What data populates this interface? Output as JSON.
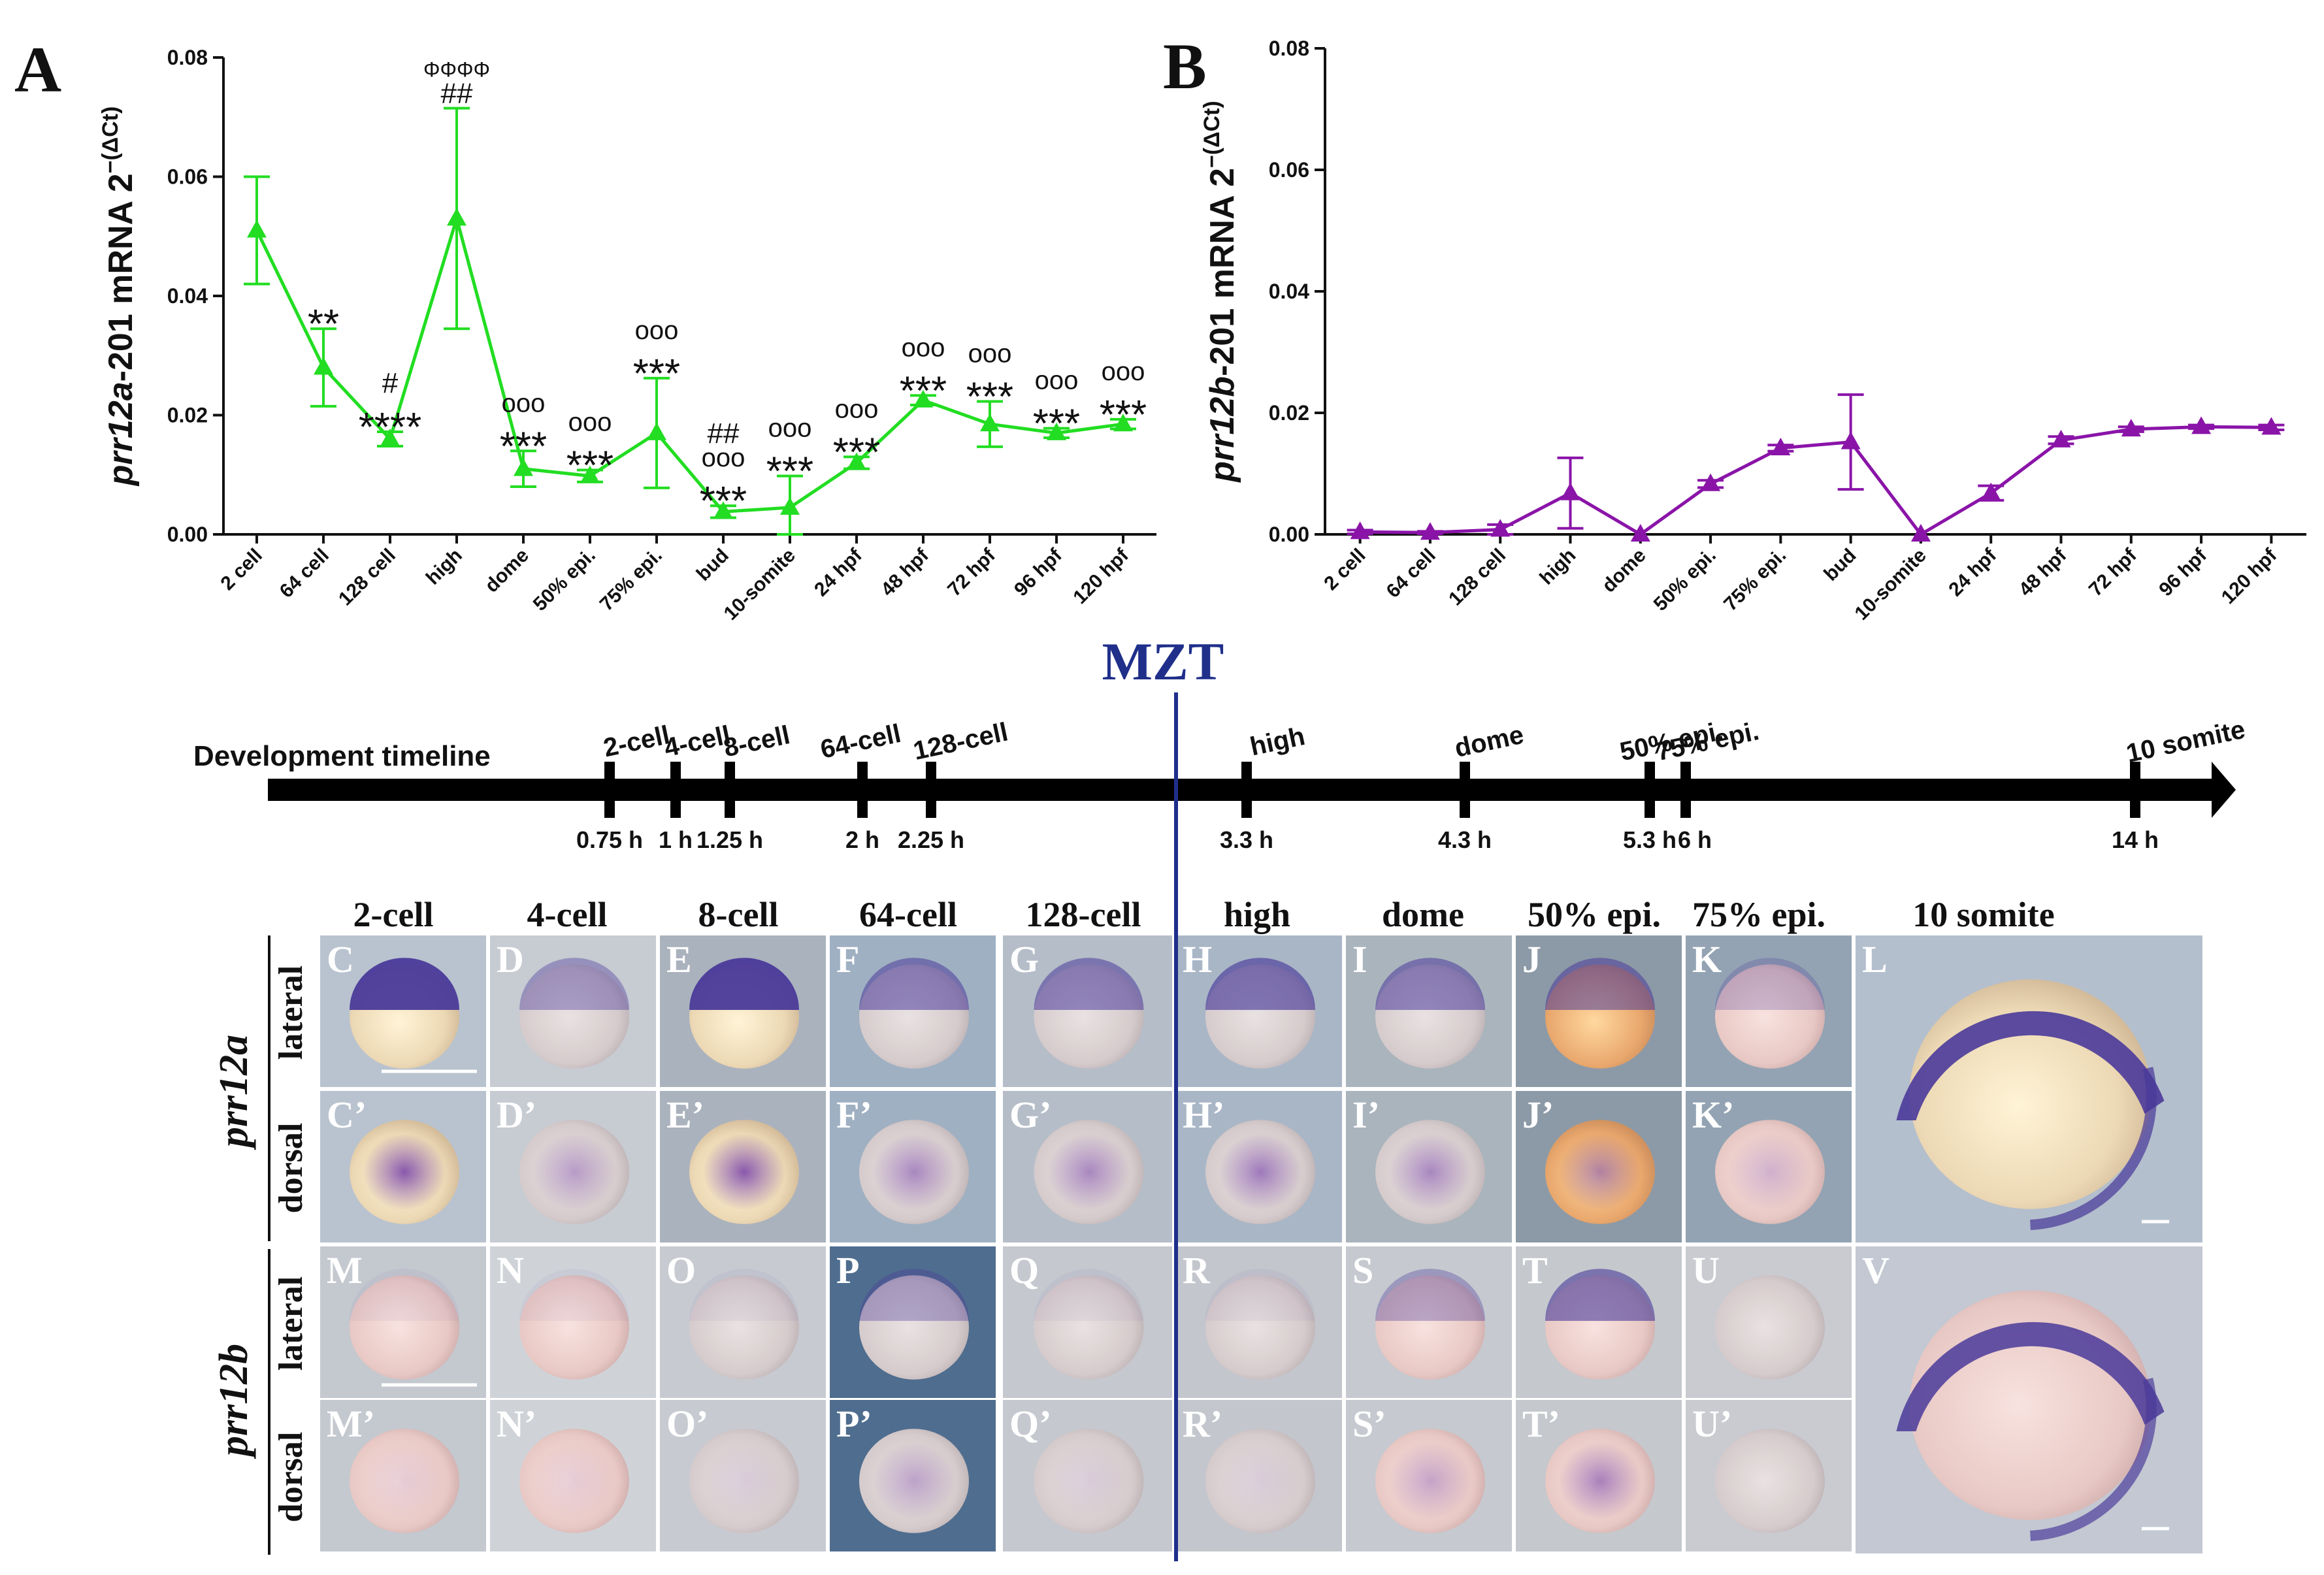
{
  "panel_labels": {
    "A": "A",
    "B": "B"
  },
  "chart_data": [
    {
      "type": "line",
      "panel": "A",
      "ylabel_gene": "prr12a",
      "ylabel_rest": "-201 mRNA 2",
      "ylabel_exp": "−(ΔCt)",
      "ylim": [
        0,
        0.08
      ],
      "yticks": [
        "0.00",
        "0.02",
        "0.04",
        "0.06",
        "0.08"
      ],
      "categories": [
        "2 cell",
        "64 cell",
        "128 cell",
        "high",
        "dome",
        "50% epi.",
        "75% epi.",
        "bud",
        "10-somite",
        "24 hpf",
        "48 hpf",
        "72 hpf",
        "96 hpf",
        "120 hpf"
      ],
      "values": [
        0.051,
        0.028,
        0.016,
        0.053,
        0.011,
        0.0098,
        0.017,
        0.0038,
        0.0045,
        0.012,
        0.0225,
        0.0185,
        0.017,
        0.0185
      ],
      "errors": [
        0.009,
        0.0065,
        0.0012,
        0.0185,
        0.003,
        0.001,
        0.0092,
        0.001,
        0.0053,
        0.001,
        0.0008,
        0.0038,
        0.0008,
        0.0008
      ],
      "color": "#22dd22",
      "annotations": [
        {
          "index": 1,
          "lines": [
            "**"
          ]
        },
        {
          "index": 2,
          "lines": [
            "#",
            "****"
          ]
        },
        {
          "index": 3,
          "lines": [
            "ΦΦΦΦ",
            "##"
          ]
        },
        {
          "index": 4,
          "lines": [
            "ooo",
            "***"
          ]
        },
        {
          "index": 5,
          "lines": [
            "ooo",
            "***"
          ]
        },
        {
          "index": 6,
          "lines": [
            "ooo",
            "***"
          ]
        },
        {
          "index": 7,
          "lines": [
            "##",
            "ooo",
            "***"
          ]
        },
        {
          "index": 8,
          "lines": [
            "ooo",
            "***"
          ]
        },
        {
          "index": 9,
          "lines": [
            "ooo",
            "***"
          ]
        },
        {
          "index": 10,
          "lines": [
            "ooo",
            "***"
          ]
        },
        {
          "index": 11,
          "lines": [
            "ooo",
            "***"
          ]
        },
        {
          "index": 12,
          "lines": [
            "ooo",
            "***"
          ]
        },
        {
          "index": 13,
          "lines": [
            "ooo",
            "***"
          ]
        }
      ]
    },
    {
      "type": "line",
      "panel": "B",
      "ylabel_gene": "prr12b",
      "ylabel_rest": "-201 mRNA 2",
      "ylabel_exp": "−(ΔCt)",
      "ylim": [
        0,
        0.08
      ],
      "yticks": [
        "0.00",
        "0.02",
        "0.04",
        "0.06",
        "0.08"
      ],
      "categories": [
        "2 cell",
        "64 cell",
        "128 cell",
        "high",
        "dome",
        "50% epi.",
        "75% epi.",
        "bud",
        "10-somite",
        "24 hpf",
        "48 hpf",
        "72 hpf",
        "96 hpf",
        "120 hpf"
      ],
      "values": [
        0.0004,
        0.0003,
        0.0008,
        0.0068,
        0.0,
        0.0083,
        0.0142,
        0.0152,
        0.0,
        0.0068,
        0.0155,
        0.0173,
        0.0177,
        0.0176
      ],
      "errors": [
        0.0003,
        0.0002,
        0.0008,
        0.0058,
        0.0,
        0.0006,
        0.0005,
        0.0078,
        0.0,
        0.0012,
        0.0006,
        0.0004,
        0.0003,
        0.0004
      ],
      "color": "#8a14a8",
      "annotations": []
    }
  ],
  "mzt_label": "MZT",
  "timeline": {
    "title": "Development timeline",
    "stages": [
      {
        "name": "2-cell",
        "time": "0.75 h"
      },
      {
        "name": "4-cell",
        "time": "1 h"
      },
      {
        "name": "8-cell",
        "time": "1.25 h"
      },
      {
        "name": "64-cell",
        "time": "2 h"
      },
      {
        "name": "128-cell",
        "time": "2.25 h"
      },
      {
        "name": "high",
        "time": "3.3 h"
      },
      {
        "name": "dome",
        "time": "4.3 h"
      },
      {
        "name": "50% epi.",
        "time": "5.3 h"
      },
      {
        "name": "75% epi.",
        "time": "6 h"
      },
      {
        "name": "10 somite",
        "time": "14 h"
      }
    ]
  },
  "grid": {
    "columns": [
      "2-cell",
      "4-cell",
      "8-cell",
      "64-cell",
      "128-cell",
      "high",
      "dome",
      "50% epi.",
      "75% epi.",
      "10 somite"
    ],
    "genes": [
      "prr12a",
      "prr12b"
    ],
    "views": [
      "lateral",
      "dorsal"
    ],
    "cell_labels": [
      [
        "C",
        "D",
        "E",
        "F",
        "G",
        "H",
        "I",
        "J",
        "K",
        "L"
      ],
      [
        "C’",
        "D’",
        "E’",
        "F’",
        "G’",
        "H’",
        "I’",
        "J’",
        "K’"
      ],
      [
        "M",
        "N",
        "O",
        "P",
        "Q",
        "R",
        "S",
        "T",
        "U",
        "V"
      ],
      [
        "M’",
        "N’",
        "O’",
        "P’",
        "Q’",
        "R’",
        "S’",
        "T’",
        "U’"
      ]
    ]
  },
  "colors": {
    "a_line": "#22dd22",
    "b_line": "#8a14a8",
    "mzt": "#1f2f8a",
    "stain": "#4a3a9a"
  }
}
